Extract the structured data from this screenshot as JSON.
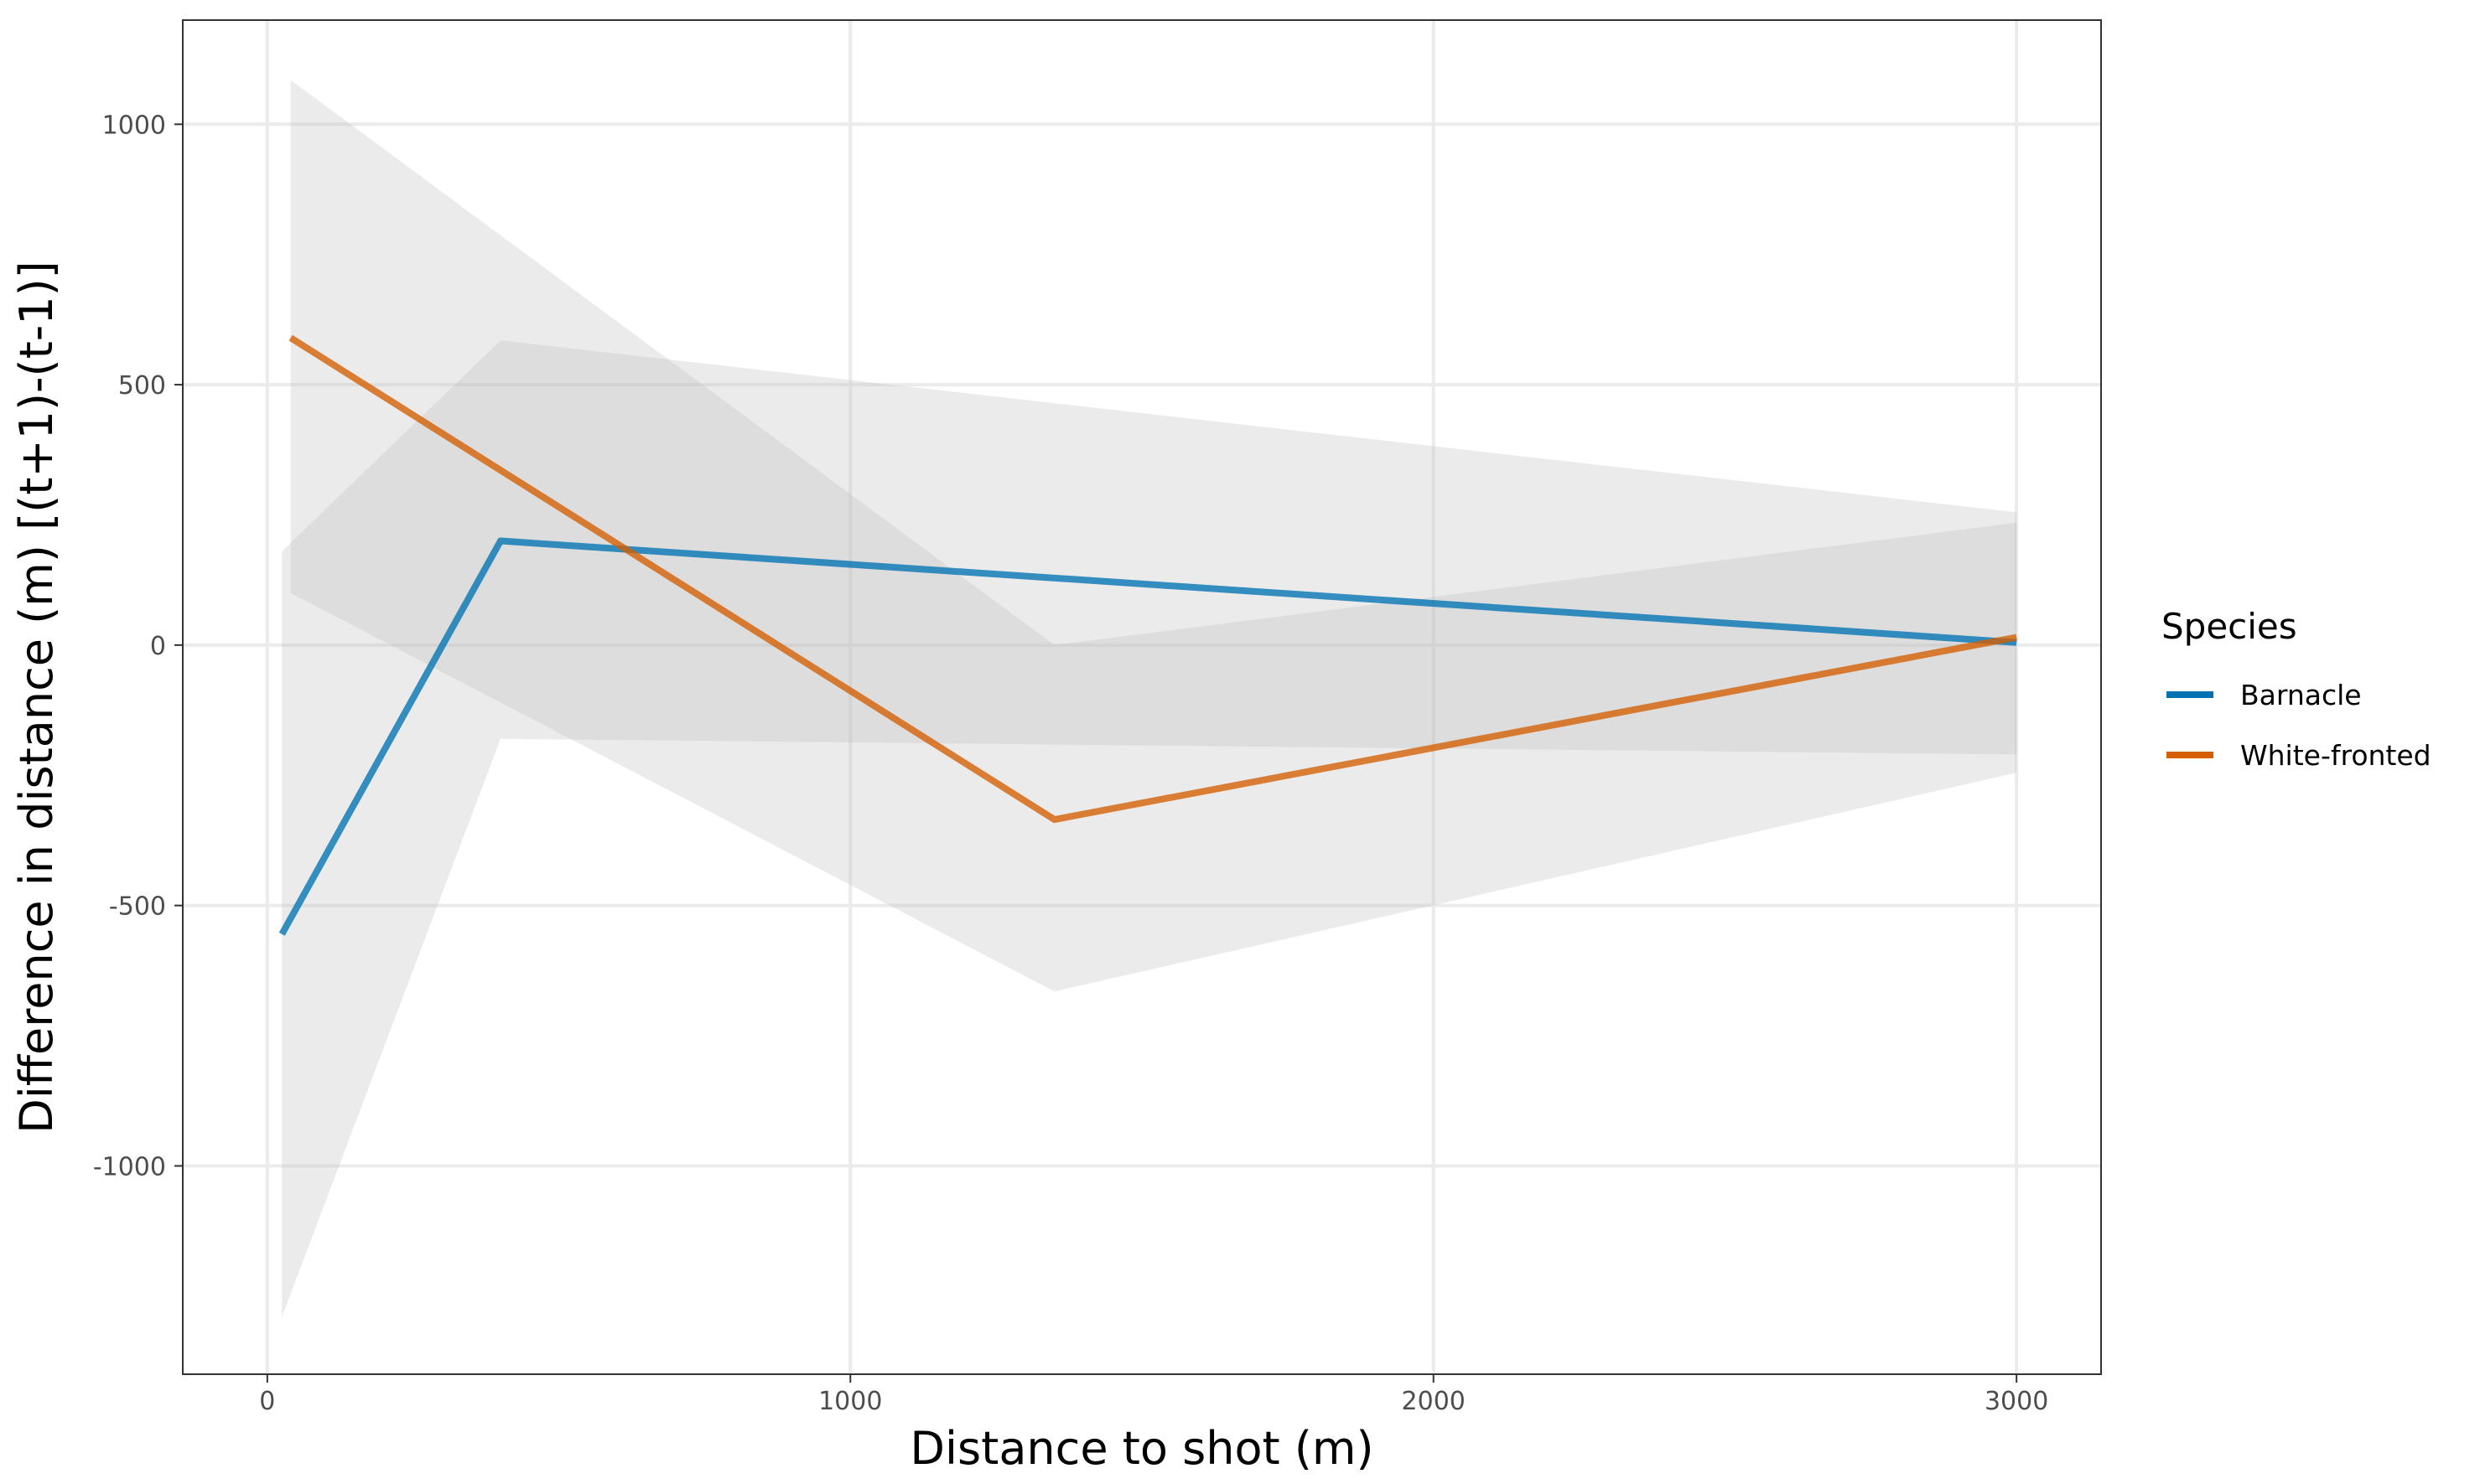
{
  "chart_data": {
    "type": "line",
    "xlabel": "Distance to shot (m)",
    "ylabel": "Difference in distance (m) [(t+1)-(t-1)]",
    "xlim": [
      -145,
      3145
    ],
    "ylim": [
      -1400,
      1200
    ],
    "x_ticks": [
      0,
      1000,
      2000,
      3000
    ],
    "x_tick_labels": [
      "0",
      "1000",
      "2000",
      "3000"
    ],
    "y_ticks": [
      -1000,
      -500,
      0,
      500,
      1000
    ],
    "y_tick_labels": [
      "-1000",
      "-500",
      "0",
      "500",
      "1000"
    ],
    "grid": true,
    "legend": {
      "title": "Species",
      "position": "right"
    },
    "series": [
      {
        "name": "Barnacle",
        "color": "#0072B2",
        "x": [
          25,
          400,
          3000
        ],
        "y": [
          -555,
          200,
          5
        ],
        "ci_lower": [
          -1290,
          -180,
          -210
        ],
        "ci_upper": [
          180,
          585,
          255
        ]
      },
      {
        "name": "White-fronted",
        "color": "#D55E00",
        "x": [
          40,
          1350,
          3000
        ],
        "y": [
          590,
          -335,
          15
        ],
        "ci_lower": [
          100,
          -665,
          -245
        ],
        "ci_upper": [
          1085,
          0,
          235
        ]
      }
    ]
  }
}
